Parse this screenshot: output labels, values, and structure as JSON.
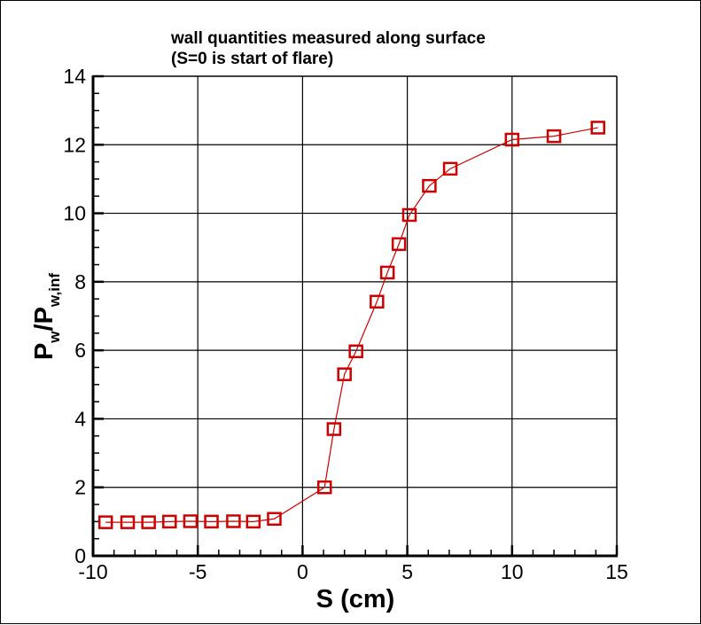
{
  "chart_data": {
    "type": "line",
    "title": "wall quantities measured along surface",
    "subtitle": "(S=0 is start of flare)",
    "xlabel": "S (cm)",
    "ylabel": "P_w/P_w,inf",
    "ylabel_main": "P",
    "ylabel_sub1": "w",
    "ylabel_slash": "/P",
    "ylabel_sub2": "w,inf",
    "xlim": [
      -10,
      15
    ],
    "ylim": [
      0,
      14
    ],
    "xticks": [
      "-10",
      "-5",
      "0",
      "5",
      "10",
      "15"
    ],
    "yticks": [
      "0",
      "2",
      "4",
      "6",
      "8",
      "10",
      "12",
      "14"
    ],
    "grid": true,
    "legend": null,
    "marker": "square",
    "series": [
      {
        "name": "P_w/P_w,inf",
        "color": "#cc0000",
        "x": [
          -9.4,
          -8.35,
          -7.35,
          -6.35,
          -5.35,
          -4.35,
          -3.3,
          -2.35,
          -1.35,
          1.05,
          1.5,
          2.0,
          2.55,
          3.55,
          4.05,
          4.6,
          5.1,
          6.05,
          7.05,
          10.0,
          12.0,
          14.1
        ],
        "y": [
          0.98,
          0.98,
          0.98,
          1.0,
          1.01,
          1.0,
          1.01,
          1.0,
          1.08,
          2.0,
          3.7,
          5.3,
          5.97,
          7.42,
          8.27,
          9.1,
          9.95,
          10.8,
          11.3,
          12.15,
          12.25,
          12.5
        ]
      }
    ]
  }
}
